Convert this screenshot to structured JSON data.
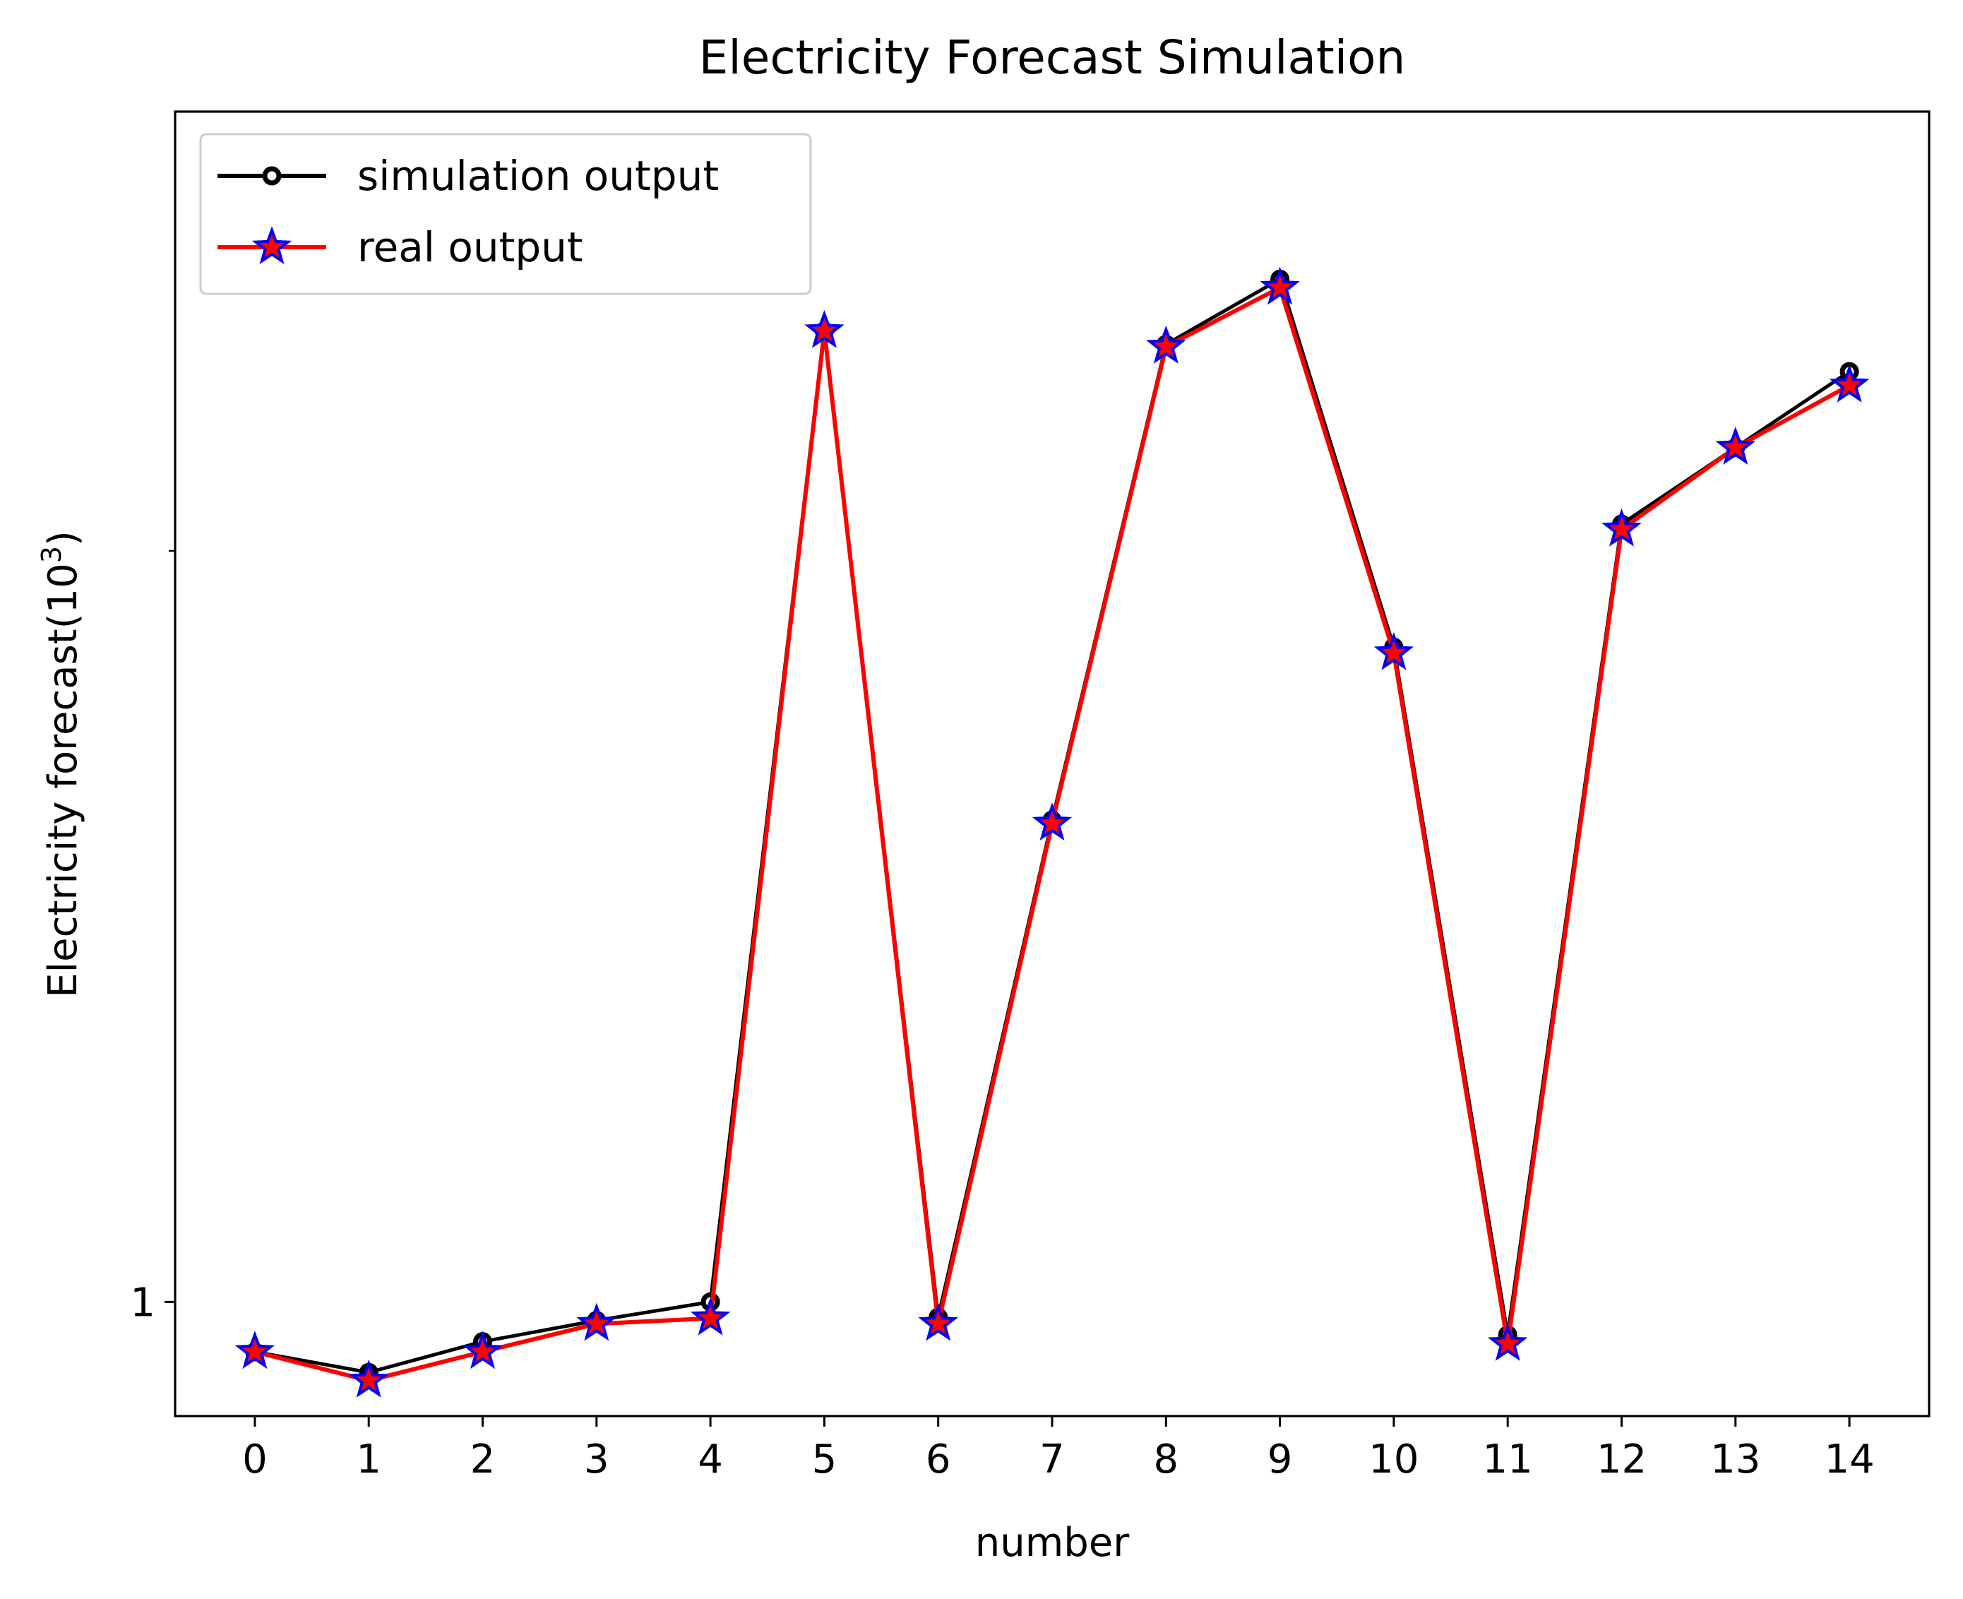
{
  "chart_data": {
    "type": "line",
    "title": "Electricity Forecast Simulation",
    "xlabel": "number",
    "ylabel": "Electricity forecast(10",
    "ylabel_superscript": "3",
    "ylabel_suffix": ")",
    "yscale": "log",
    "x": [
      0,
      1,
      2,
      3,
      4,
      5,
      6,
      7,
      8,
      9,
      10,
      11,
      12,
      13,
      14
    ],
    "x_tick_labels": [
      "0",
      "1",
      "2",
      "3",
      "4",
      "5",
      "6",
      "7",
      "8",
      "9",
      "10",
      "11",
      "12",
      "13",
      "14"
    ],
    "y_tick_values": [
      1
    ],
    "y_tick_labels": [
      "1"
    ],
    "y_minor_ticks": [
      2,
      3,
      4
    ],
    "ylim": [
      0.9,
      3.0
    ],
    "xlim": [
      -0.7,
      14.7
    ],
    "series": [
      {
        "name": "simulation output",
        "color": "#000000",
        "marker": "circle",
        "values": [
          0.955,
          0.937,
          0.964,
          0.983,
          1.0,
          2.45,
          0.986,
          1.56,
          2.42,
          2.57,
          1.83,
          0.97,
          2.05,
          2.2,
          2.36
        ]
      },
      {
        "name": "real output",
        "color": "#ff0000",
        "marker_edge_color": "#0000ff",
        "marker": "star",
        "values": [
          0.955,
          0.93,
          0.955,
          0.98,
          0.985,
          2.45,
          0.98,
          1.555,
          2.415,
          2.55,
          1.82,
          0.962,
          2.04,
          2.2,
          2.33
        ]
      }
    ],
    "legend": {
      "position": "upper-left",
      "entries": [
        "simulation output",
        "real output"
      ]
    }
  }
}
